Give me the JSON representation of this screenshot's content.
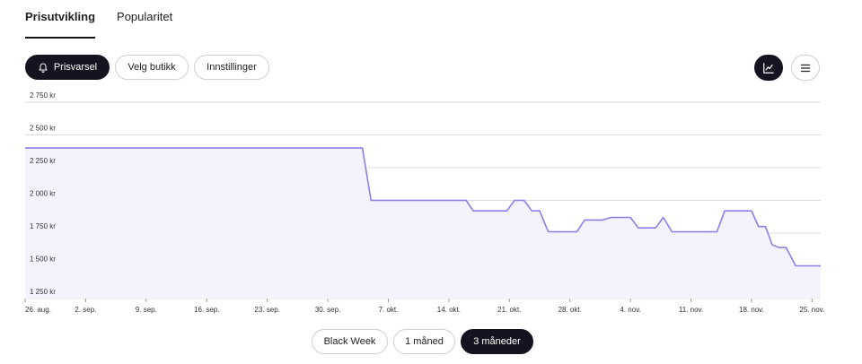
{
  "tabs": [
    {
      "label": "Prisutvikling",
      "active": true
    },
    {
      "label": "Popularitet",
      "active": false
    }
  ],
  "toolbar": {
    "price_alert": {
      "label": "Prisvarsel",
      "icon": "bell-icon"
    },
    "choose_store": "Velg butikk",
    "settings": "Innstillinger",
    "view_chart_icon": "line-chart-icon",
    "view_list_icon": "list-icon"
  },
  "range_buttons": [
    {
      "label": "Black Week",
      "active": false
    },
    {
      "label": "1 måned",
      "active": false
    },
    {
      "label": "3 måneder",
      "active": true
    }
  ],
  "colors": {
    "line": "#8b7fe8",
    "fill": "#f4f2fd",
    "dark": "#15131f"
  },
  "chart_data": {
    "type": "line",
    "y_ticks": [
      {
        "value": 2750,
        "label": "2 750 kr"
      },
      {
        "value": 2500,
        "label": "2 500 kr"
      },
      {
        "value": 2250,
        "label": "2 250 kr"
      },
      {
        "value": 2000,
        "label": "2 000 kr"
      },
      {
        "value": 1750,
        "label": "1 750 kr"
      },
      {
        "value": 1500,
        "label": "1 500 kr"
      },
      {
        "value": 1250,
        "label": "1 250 kr"
      }
    ],
    "ylim": [
      1250,
      2750
    ],
    "x_ticks": [
      {
        "day": 0,
        "label": "26. aug."
      },
      {
        "day": 7,
        "label": "2. sep."
      },
      {
        "day": 14,
        "label": "9. sep."
      },
      {
        "day": 21,
        "label": "16. sep."
      },
      {
        "day": 28,
        "label": "23. sep."
      },
      {
        "day": 35,
        "label": "30. sep."
      },
      {
        "day": 42,
        "label": "7. okt."
      },
      {
        "day": 49,
        "label": "14. okt."
      },
      {
        "day": 56,
        "label": "21. okt."
      },
      {
        "day": 63,
        "label": "28. okt."
      },
      {
        "day": 70,
        "label": "4. nov."
      },
      {
        "day": 77,
        "label": "11. nov."
      },
      {
        "day": 84,
        "label": "18. nov."
      },
      {
        "day": 91,
        "label": "25. nov."
      }
    ],
    "xlim": [
      0,
      92
    ],
    "series": [
      {
        "points": [
          [
            0,
            2400
          ],
          [
            39,
            2400
          ],
          [
            40,
            2000
          ],
          [
            51,
            2000
          ],
          [
            51.8,
            1920
          ],
          [
            55.7,
            1920
          ],
          [
            56.6,
            2000
          ],
          [
            57.7,
            2000
          ],
          [
            58.6,
            1920
          ],
          [
            59.5,
            1920
          ],
          [
            60.5,
            1760
          ],
          [
            63.8,
            1760
          ],
          [
            64.7,
            1850
          ],
          [
            66.7,
            1850
          ],
          [
            67.8,
            1870
          ],
          [
            70,
            1870
          ],
          [
            70.9,
            1790
          ],
          [
            72.9,
            1790
          ],
          [
            73.8,
            1870
          ],
          [
            74.8,
            1760
          ],
          [
            80,
            1760
          ],
          [
            80.9,
            1920
          ],
          [
            84,
            1920
          ],
          [
            84.8,
            1800
          ],
          [
            85.6,
            1800
          ],
          [
            86.4,
            1660
          ],
          [
            87.2,
            1640
          ],
          [
            88,
            1640
          ],
          [
            89.1,
            1500
          ],
          [
            92,
            1500
          ]
        ]
      }
    ]
  }
}
